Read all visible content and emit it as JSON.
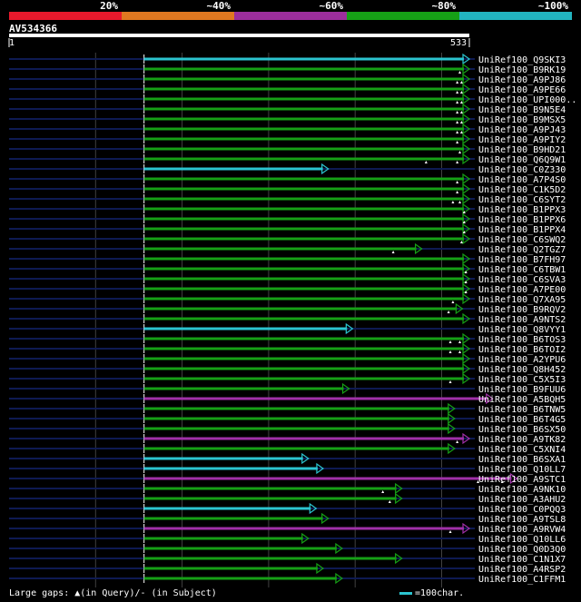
{
  "chart_data": {
    "type": "alignment",
    "scale_bins": [
      {
        "label": "20%",
        "color": "#e8192c"
      },
      {
        "label": "~40%",
        "color": "#e07820"
      },
      {
        "label": "~60%",
        "color": "#9c2e9c"
      },
      {
        "label": "~80%",
        "color": "#16a016"
      },
      {
        "label": "~100%",
        "color": "#22b4c0"
      }
    ],
    "query": {
      "name": "AV534366",
      "start": "1",
      "end": "533",
      "length": 533
    },
    "hits": [
      {
        "name": "UniRef100_Q9SKI3",
        "start": 157,
        "end": 533,
        "color": "cyan",
        "gaps": []
      },
      {
        "name": "UniRef100_B9RK19",
        "start": 157,
        "end": 533,
        "color": "green",
        "gaps": [
          522
        ]
      },
      {
        "name": "UniRef100_A9PJ86",
        "start": 157,
        "end": 533,
        "color": "green",
        "gaps": [
          519,
          524
        ]
      },
      {
        "name": "UniRef100_A9PE66",
        "start": 157,
        "end": 533,
        "color": "green",
        "gaps": [
          519,
          524
        ]
      },
      {
        "name": "UniRef100_UPI000..",
        "start": 157,
        "end": 533,
        "color": "green",
        "gaps": [
          519,
          524
        ]
      },
      {
        "name": "UniRef100_B9N5E4",
        "start": 157,
        "end": 533,
        "color": "green",
        "gaps": [
          519,
          524
        ]
      },
      {
        "name": "UniRef100_B9MSX5",
        "start": 157,
        "end": 533,
        "color": "green",
        "gaps": [
          519,
          524
        ]
      },
      {
        "name": "UniRef100_A9PJ43",
        "start": 157,
        "end": 533,
        "color": "green",
        "gaps": [
          519,
          524
        ]
      },
      {
        "name": "UniRef100_A9PIY2",
        "start": 157,
        "end": 533,
        "color": "green",
        "gaps": [
          519
        ]
      },
      {
        "name": "UniRef100_B9HD21",
        "start": 157,
        "end": 533,
        "color": "green",
        "gaps": [
          522
        ]
      },
      {
        "name": "UniRef100_Q6Q9W1",
        "start": 157,
        "end": 533,
        "color": "green",
        "gaps": [
          483,
          519
        ]
      },
      {
        "name": "UniRef100_C0Z330",
        "start": 157,
        "end": 370,
        "color": "cyan",
        "gaps": []
      },
      {
        "name": "UniRef100_A7P4S0",
        "start": 157,
        "end": 533,
        "color": "green",
        "gaps": [
          519
        ]
      },
      {
        "name": "UniRef100_C1K5D2",
        "start": 157,
        "end": 533,
        "color": "green",
        "gaps": [
          519
        ]
      },
      {
        "name": "UniRef100_C6SYT2",
        "start": 157,
        "end": 533,
        "color": "green",
        "gaps": [
          514,
          522
        ]
      },
      {
        "name": "UniRef100_B1PPX3",
        "start": 157,
        "end": 533,
        "color": "green",
        "gaps": [
          527
        ]
      },
      {
        "name": "UniRef100_B1PPX6",
        "start": 157,
        "end": 533,
        "color": "green",
        "gaps": [
          527
        ]
      },
      {
        "name": "UniRef100_B1PPX4",
        "start": 157,
        "end": 533,
        "color": "green",
        "gaps": [
          527
        ]
      },
      {
        "name": "UniRef100_C6SWQ2",
        "start": 157,
        "end": 533,
        "color": "green",
        "gaps": [
          524
        ]
      },
      {
        "name": "UniRef100_Q2TGZ7",
        "start": 157,
        "end": 478,
        "color": "green",
        "gaps": [
          445
        ]
      },
      {
        "name": "UniRef100_B7FH97",
        "start": 157,
        "end": 533,
        "color": "green",
        "gaps": []
      },
      {
        "name": "UniRef100_C6TBW1",
        "start": 157,
        "end": 533,
        "color": "green",
        "gaps": [
          529
        ]
      },
      {
        "name": "UniRef100_C6SVA3",
        "start": 157,
        "end": 533,
        "color": "green",
        "gaps": [
          529
        ]
      },
      {
        "name": "UniRef100_A7PE00",
        "start": 157,
        "end": 533,
        "color": "green",
        "gaps": [
          529
        ]
      },
      {
        "name": "UniRef100_Q7XA95",
        "start": 157,
        "end": 533,
        "color": "green",
        "gaps": [
          514
        ]
      },
      {
        "name": "UniRef100_B9RQV2",
        "start": 157,
        "end": 525,
        "color": "green",
        "gaps": [
          509
        ]
      },
      {
        "name": "UniRef100_A9NTS2",
        "start": 157,
        "end": 533,
        "color": "green",
        "gaps": []
      },
      {
        "name": "UniRef100_Q8VYY1",
        "start": 157,
        "end": 398,
        "color": "cyan",
        "gaps": []
      },
      {
        "name": "UniRef100_B6TOS3",
        "start": 157,
        "end": 533,
        "color": "green",
        "gaps": [
          511,
          522
        ]
      },
      {
        "name": "UniRef100_B6TOI2",
        "start": 157,
        "end": 533,
        "color": "green",
        "gaps": [
          511,
          522
        ]
      },
      {
        "name": "UniRef100_A2YPU6",
        "start": 157,
        "end": 533,
        "color": "green",
        "gaps": []
      },
      {
        "name": "UniRef100_Q8H452",
        "start": 157,
        "end": 533,
        "color": "green",
        "gaps": []
      },
      {
        "name": "UniRef100_C5X5I3",
        "start": 157,
        "end": 533,
        "color": "green",
        "gaps": [
          511
        ]
      },
      {
        "name": "UniRef100_B9FUU6",
        "start": 157,
        "end": 394,
        "color": "green",
        "gaps": []
      },
      {
        "name": "UniRef100_A5BQH5",
        "start": 157,
        "end": 560,
        "color": "magenta",
        "gaps": []
      },
      {
        "name": "UniRef100_B6TNW5",
        "start": 157,
        "end": 516,
        "color": "green",
        "gaps": []
      },
      {
        "name": "UniRef100_B6T4G5",
        "start": 157,
        "end": 516,
        "color": "green",
        "gaps": []
      },
      {
        "name": "UniRef100_B6SX50",
        "start": 157,
        "end": 516,
        "color": "green",
        "gaps": []
      },
      {
        "name": "UniRef100_A9TK82",
        "start": 157,
        "end": 533,
        "color": "magenta",
        "gaps": [
          519
        ]
      },
      {
        "name": "UniRef100_C5XNI4",
        "start": 157,
        "end": 516,
        "color": "green",
        "gaps": []
      },
      {
        "name": "UniRef100_B6SXA1",
        "start": 157,
        "end": 347,
        "color": "cyan",
        "gaps": []
      },
      {
        "name": "UniRef100_Q10LL7",
        "start": 157,
        "end": 364,
        "color": "cyan",
        "gaps": []
      },
      {
        "name": "UniRef100_A9STC1",
        "start": 157,
        "end": 588,
        "color": "magenta",
        "gaps": [
          543,
          571
        ]
      },
      {
        "name": "UniRef100_A9NK10",
        "start": 157,
        "end": 455,
        "color": "green",
        "gaps": [
          433
        ]
      },
      {
        "name": "UniRef100_A3AHU2",
        "start": 157,
        "end": 455,
        "color": "green",
        "gaps": [
          441
        ]
      },
      {
        "name": "UniRef100_C0PQQ3",
        "start": 157,
        "end": 356,
        "color": "cyan",
        "gaps": []
      },
      {
        "name": "UniRef100_A9TSL8",
        "start": 157,
        "end": 370,
        "color": "green",
        "gaps": []
      },
      {
        "name": "UniRef100_A9RVW4",
        "start": 157,
        "end": 533,
        "color": "magenta",
        "gaps": [
          511
        ]
      },
      {
        "name": "UniRef100_Q10LL6",
        "start": 157,
        "end": 347,
        "color": "green",
        "gaps": []
      },
      {
        "name": "UniRef100_Q0D3Q0",
        "start": 157,
        "end": 386,
        "color": "green",
        "gaps": []
      },
      {
        "name": "UniRef100_C1N1X7",
        "start": 157,
        "end": 455,
        "color": "green",
        "gaps": []
      },
      {
        "name": "UniRef100_A4RSP2",
        "start": 157,
        "end": 364,
        "color": "green",
        "gaps": []
      },
      {
        "name": "UniRef100_C1FFM1",
        "start": 157,
        "end": 386,
        "color": "green",
        "gaps": []
      }
    ],
    "colors": {
      "cyan": "#2bc4cf",
      "green": "#16a016",
      "magenta": "#a030a8",
      "track": "#0e1a52",
      "grid": "#404040",
      "tick": "#ffffff",
      "gapmark": "#ffffff"
    }
  },
  "footer": {
    "gaps_text": "Large gaps: ▲(in Query)/- (in Subject)",
    "legend_text": "=100char."
  }
}
